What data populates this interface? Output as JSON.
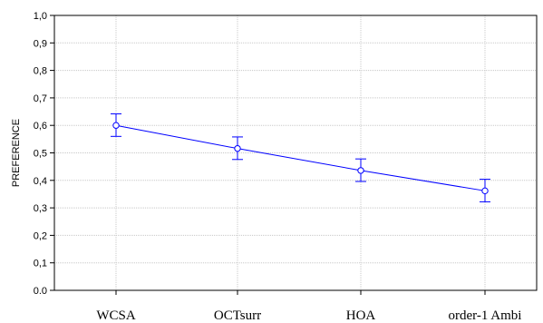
{
  "chart_data": {
    "type": "line",
    "title": "",
    "xlabel": "",
    "ylabel": "PREFERENCE",
    "categories": [
      "WCSA",
      "OCTsurr",
      "HOA",
      "order-1 Ambi"
    ],
    "series": [
      {
        "values": [
          0.6,
          0.516,
          0.436,
          0.362
        ],
        "error_low": [
          0.56,
          0.476,
          0.396,
          0.322
        ],
        "error_high": [
          0.642,
          0.558,
          0.478,
          0.404
        ]
      }
    ],
    "ylim": [
      0.0,
      1.0
    ],
    "yticks": [
      "0.0",
      "0,1",
      "0,2",
      "0,3",
      "0,4",
      "0,5",
      "0,6",
      "0,7",
      "0,8",
      "0,9",
      "1,0"
    ],
    "grid": true,
    "line_color": "#0000ff",
    "grid_color": "#c8c8c8"
  }
}
